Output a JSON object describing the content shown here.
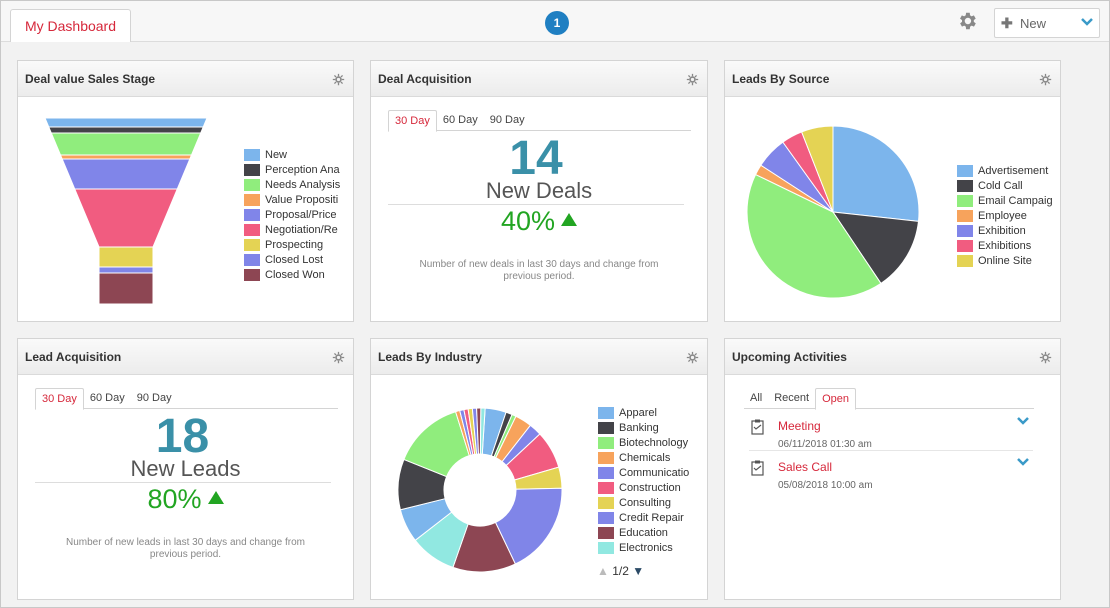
{
  "header": {
    "dashboard_tab": "My Dashboard",
    "notification_count": "1",
    "new_button": "New"
  },
  "widgets": {
    "deal_value": {
      "title": "Deal value Sales Stage",
      "chart_data": {
        "type": "funnel",
        "categories": [
          "New",
          "Perception Ana",
          "Needs Analysis",
          "Value Propositi",
          "Proposal/Price",
          "Negotiation/Re",
          "Prospecting",
          "Closed Lost",
          "Closed Won"
        ],
        "colors": [
          "#7cb5ec",
          "#434348",
          "#90ed7d",
          "#f7a35c",
          "#8085e9",
          "#f15c80",
          "#e4d354",
          "#8085e8",
          "#8d4653"
        ]
      }
    },
    "deal_acq": {
      "title": "Deal Acquisition",
      "tabs": [
        "30 Day",
        "60 Day",
        "90 Day"
      ],
      "count": "14",
      "label": "New Deals",
      "percent": "40%",
      "note": "Number of new deals in last 30 days and change from previous period."
    },
    "leads_source": {
      "title": "Leads By Source",
      "chart_data": {
        "type": "pie",
        "categories": [
          "Advertisement",
          "Cold Call",
          "Email Campaig",
          "Employee",
          "Exhibition",
          "Exhibitions",
          "Online Site"
        ],
        "values": [
          27,
          14,
          42,
          2,
          6,
          4,
          6
        ],
        "colors": [
          "#7cb5ec",
          "#434348",
          "#90ed7d",
          "#f7a35c",
          "#8085e9",
          "#f15c80",
          "#e4d354"
        ]
      }
    },
    "lead_acq": {
      "title": "Lead Acquisition",
      "tabs": [
        "30 Day",
        "60 Day",
        "90 Day"
      ],
      "count": "18",
      "label": "New Leads",
      "percent": "80%",
      "note": "Number of new leads in last 30 days and change from previous period."
    },
    "leads_industry": {
      "title": "Leads By Industry",
      "page": "1/2",
      "chart_data": {
        "type": "pie",
        "categories": [
          "Apparel",
          "Banking",
          "Biotechnology",
          "Chemicals",
          "Communicatio",
          "Construction",
          "Consulting",
          "Credit Repair",
          "Education",
          "Electronics"
        ],
        "colors": [
          "#7cb5ec",
          "#434348",
          "#90ed7d",
          "#f7a35c",
          "#8085e9",
          "#f15c80",
          "#e4d354",
          "#8085e8",
          "#8d4653",
          "#91e8e1"
        ]
      }
    },
    "upcoming": {
      "title": "Upcoming Activities",
      "tabs": [
        "All",
        "Recent",
        "Open"
      ],
      "items": [
        {
          "title": "Meeting",
          "time": "06/11/2018 01:30 am"
        },
        {
          "title": "Sales Call",
          "time": "05/08/2018 10:00 am"
        }
      ]
    }
  }
}
